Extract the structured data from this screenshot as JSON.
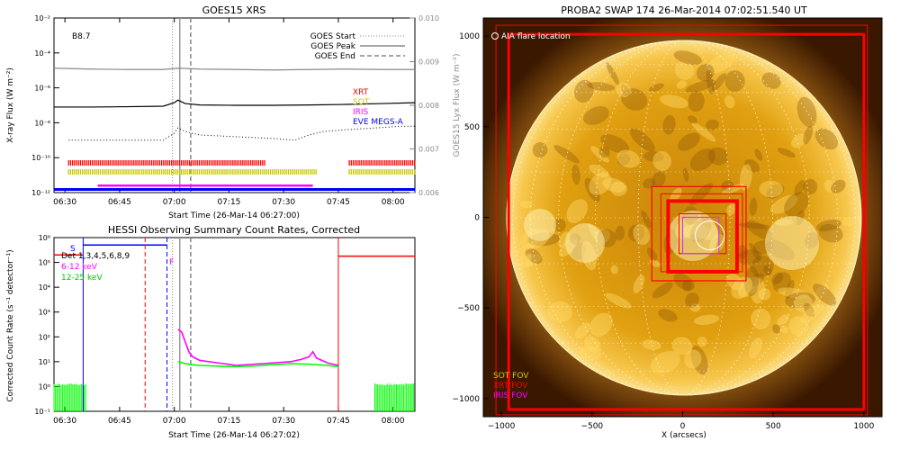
{
  "colors": {
    "goes": "#000000",
    "lya": "#8a8a8a",
    "xrt": "#ff0000",
    "sot": "#c8c800",
    "iris": "#ff00ff",
    "eve": "#0000ff",
    "hessi_6_12": "#ff00ff",
    "hessi_12_25": "#00ff00",
    "sun_bg": "#3a1800",
    "sun_disk": "#e3a410"
  },
  "chart_data": [
    {
      "type": "line",
      "title": "GOES15 XRS",
      "xlabel": "Start Time (26-Mar-14 06:27:00)",
      "ylabel": "X-ray Flux (W m⁻²)",
      "y2label": "GOES15 Lyx Flux (W m⁻²)",
      "class_label": "B8.7",
      "x_ticks": [
        "06:30",
        "06:45",
        "07:00",
        "07:15",
        "07:30",
        "07:45",
        "08:00"
      ],
      "x_range_min": [
        0,
        99
      ],
      "y_scale": "log",
      "y_ticks": [
        "10⁻¹²",
        "10⁻¹⁰",
        "10⁻⁸",
        "10⁻⁶",
        "10⁻⁴",
        "10⁻²"
      ],
      "ylim_exp": [
        -12,
        -2
      ],
      "y2_ticks": [
        "0.006",
        "0.007",
        "0.008",
        "0.009",
        "0.010"
      ],
      "y2lim": [
        0.006,
        0.01
      ],
      "legend": [
        "GOES Start",
        "GOES Peak",
        "GOES End"
      ],
      "markers_min": {
        "goes_start": 32.5,
        "goes_peak": 34.5,
        "goes_end": 37.5
      },
      "instrument_labels": [
        "XRT",
        "SOT",
        "IRIS",
        "EVE MEGS-A"
      ],
      "series": [
        {
          "name": "GOES Lyx",
          "axis": "y2",
          "x_min": [
            0,
            10,
            20,
            30,
            34,
            40,
            50,
            60,
            70,
            80,
            90,
            99
          ],
          "values": [
            0.00885,
            0.00883,
            0.00882,
            0.00882,
            0.00885,
            0.00883,
            0.00882,
            0.00881,
            0.00882,
            0.00883,
            0.00882,
            0.00882
          ]
        },
        {
          "name": "GOES long",
          "x_min": [
            0,
            10,
            20,
            30,
            33,
            34,
            36,
            40,
            50,
            60,
            70,
            80,
            90,
            99
          ],
          "values_exp": [
            -7.1,
            -7.1,
            -7.08,
            -7.05,
            -6.85,
            -6.7,
            -6.9,
            -6.98,
            -7.0,
            -7.0,
            -6.98,
            -6.95,
            -6.9,
            -6.85
          ]
        },
        {
          "name": "GOES short",
          "x_min": [
            4,
            10,
            20,
            30,
            33,
            34,
            36,
            40,
            50,
            60,
            66,
            70,
            74,
            80,
            88,
            95,
            99
          ],
          "values_exp": [
            -9.0,
            -9.0,
            -9.0,
            -9.0,
            -8.6,
            -8.3,
            -8.5,
            -8.7,
            -8.8,
            -8.9,
            -9.0,
            -8.7,
            -8.5,
            -8.4,
            -8.3,
            -8.2,
            -8.2
          ]
        }
      ],
      "bars": {
        "xrt": [
          [
            4,
            58
          ],
          [
            81,
            99
          ]
        ],
        "sot": [
          [
            4,
            72
          ],
          [
            81,
            99
          ]
        ],
        "iris": [
          [
            12,
            71
          ]
        ],
        "eve": [
          [
            0,
            99
          ]
        ]
      }
    },
    {
      "type": "line",
      "title": "HESSI Observing Summary Count Rates, Corrected",
      "xlabel": "Start Time (26-Mar-14 06:27:02)",
      "ylabel": "Corrected Count Rate (s⁻¹ detector⁻¹)",
      "x_ticks": [
        "06:30",
        "06:45",
        "07:00",
        "07:15",
        "07:30",
        "07:45",
        "08:00"
      ],
      "x_range_min": [
        0,
        99
      ],
      "y_scale": "log",
      "y_ticks": [
        "10⁻¹",
        "10⁰",
        "10¹",
        "10²",
        "10³",
        "10⁴",
        "10⁵",
        "10⁶"
      ],
      "ylim_exp": [
        -1,
        6
      ],
      "legend": [
        "Det 1,3,4,5,6,8,9",
        "6-12 keV",
        "12-25 keV"
      ],
      "annotations": [
        "S",
        "F"
      ],
      "series": [
        {
          "name": "6-12 keV",
          "x_min": [
            34,
            35,
            36,
            37,
            38,
            40,
            45,
            50,
            55,
            60,
            65,
            68,
            70,
            71,
            72,
            75,
            78
          ],
          "values_exp": [
            2.3,
            2.2,
            1.8,
            1.4,
            1.2,
            1.05,
            0.95,
            0.85,
            0.9,
            0.95,
            1.0,
            1.1,
            1.2,
            1.4,
            1.15,
            0.95,
            0.85
          ]
        },
        {
          "name": "12-25 keV",
          "x_min": [
            34,
            36,
            38,
            40,
            45,
            50,
            55,
            60,
            65,
            70,
            75,
            78
          ],
          "values_exp": [
            1.0,
            0.92,
            0.88,
            0.85,
            0.82,
            0.8,
            0.83,
            0.88,
            0.92,
            0.9,
            0.85,
            0.8
          ]
        }
      ],
      "fill_12_25": [
        [
          0,
          9
        ],
        [
          88,
          99
        ]
      ],
      "red_step": {
        "x_min": [
          0,
          25,
          71,
          78,
          99
        ],
        "values_exp": [
          5.3,
          5.3,
          5.3,
          5.3,
          5.3
        ],
        "low_from_min": 25,
        "low_to_min": 71
      },
      "blue_step": {
        "x_from_min": 8,
        "x_to_min": 34,
        "value_exp": 5.7
      }
    }
  ],
  "swap": {
    "title": "PROBA2 SWAP 174 26-Mar-2014 07:02:51.540 UT",
    "xlabel": "X (arcsecs)",
    "x_ticks": [
      "−1000",
      "−500",
      "0",
      "500",
      "1000"
    ],
    "y_ticks": [
      "1000",
      "500",
      "0",
      "−500",
      "−1000"
    ],
    "lim": [
      -1100,
      1100
    ],
    "flare_label": "AIA flare location",
    "fov_labels": [
      "SOT FOV",
      "XRT FOV",
      "IRIS FOV"
    ],
    "fovs": {
      "xrt_outer": [
        -1000,
        1000,
        -1000,
        1000
      ],
      "xrt_mid": [
        -170,
        350,
        -350,
        170
      ],
      "xrt_inner": [
        -80,
        300,
        -300,
        90
      ],
      "iris": [
        0,
        200,
        -200,
        0
      ],
      "flare_center": [
        150,
        -100
      ],
      "flare_radius": 80
    }
  }
}
